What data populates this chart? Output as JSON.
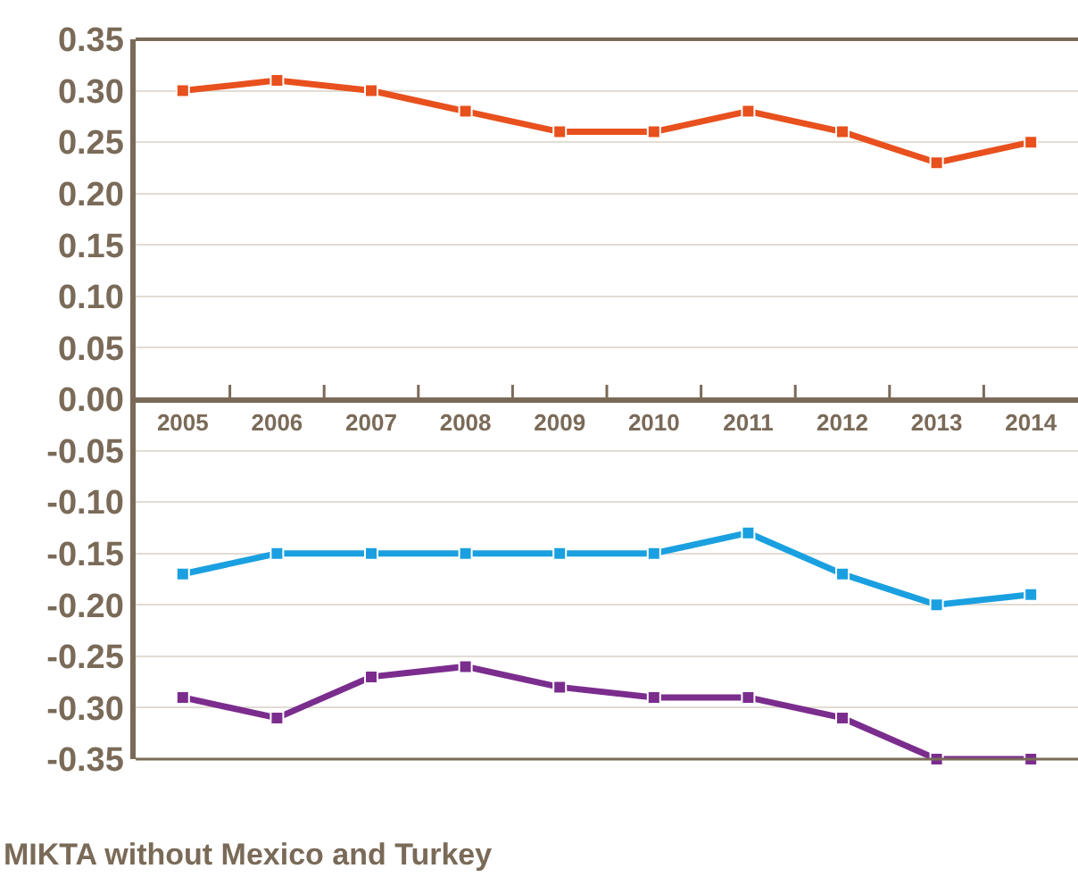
{
  "chart_data": {
    "type": "line",
    "categories": [
      "2005",
      "2006",
      "2007",
      "2008",
      "2009",
      "2010",
      "2011",
      "2012",
      "2013",
      "2014"
    ],
    "series": [
      {
        "color": "#e8501e",
        "values": [
          0.3,
          0.31,
          0.3,
          0.28,
          0.26,
          0.26,
          0.28,
          0.26,
          0.23,
          0.25
        ]
      },
      {
        "color": "#1aa0e0",
        "values": [
          -0.17,
          -0.15,
          -0.15,
          -0.15,
          -0.15,
          -0.15,
          -0.13,
          -0.17,
          -0.2,
          -0.19
        ]
      },
      {
        "color": "#7b2d8e",
        "values": [
          -0.29,
          -0.31,
          -0.27,
          -0.26,
          -0.28,
          -0.29,
          -0.29,
          -0.31,
          -0.35,
          -0.35
        ]
      }
    ],
    "ylim": [
      -0.35,
      0.35
    ],
    "yticks": [
      {
        "value": 0.35,
        "label": "0.35"
      },
      {
        "value": 0.3,
        "label": "0.30"
      },
      {
        "value": 0.25,
        "label": "0.25"
      },
      {
        "value": 0.2,
        "label": "0.20"
      },
      {
        "value": 0.15,
        "label": "0.15"
      },
      {
        "value": 0.1,
        "label": "0.10"
      },
      {
        "value": 0.05,
        "label": "0.05"
      },
      {
        "value": 0,
        "label": "0.00"
      },
      {
        "value": -0.05,
        "label": "-0.05"
      },
      {
        "value": -0.1,
        "label": "-0.10"
      },
      {
        "value": -0.15,
        "label": "-0.15"
      },
      {
        "value": -0.2,
        "label": "-0.20"
      },
      {
        "value": -0.25,
        "label": "-0.25"
      },
      {
        "value": -0.3,
        "label": "-0.30"
      },
      {
        "value": -0.35,
        "label": "-0.35"
      }
    ],
    "grid": "y",
    "marker": "square",
    "line_style": "solid",
    "annotations": [
      "MIKTA without Mexico and Turkey"
    ]
  }
}
